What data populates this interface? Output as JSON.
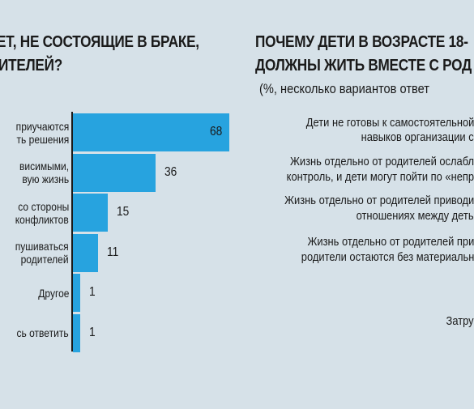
{
  "left_panel": {
    "title_lines": [
      "ЕТ, НЕ СОСТОЯЩИЕ В БРАКЕ,",
      "ИТЕЛЕЙ?"
    ]
  },
  "right_panel": {
    "title_lines": [
      "ПОЧЕМУ ДЕТИ В ВОЗРАСТЕ 18-",
      "ДОЛЖНЫ ЖИТЬ ВМЕСТЕ С РОД"
    ],
    "subtitle": "(%, несколько вариантов ответ",
    "reasons": [
      [
        "Дети не готовы к самостоятельной",
        "навыков организации с"
      ],
      [
        "Жизнь отдельно от родителей ослабл",
        "контроль, и дети могут пойти по «непр"
      ],
      [
        "Жизнь отдельно от родителей приводи",
        "отношениях между деть"
      ],
      [
        "Жизнь отдельно от родителей при",
        "родители остаются без материальн"
      ],
      [
        "Затру"
      ]
    ]
  },
  "chart_data": {
    "type": "bar",
    "orientation": "horizontal",
    "categories": [
      [
        "приучаются",
        "ть решения"
      ],
      [
        "висимыми,",
        "вую жизнь"
      ],
      [
        "со стороны",
        "конфликтов"
      ],
      [
        "пушиваться",
        "родителей"
      ],
      [
        "Другое"
      ],
      [
        "сь ответить"
      ]
    ],
    "values": [
      68,
      36,
      15,
      11,
      1,
      1
    ],
    "data_labels": [
      "68",
      "36",
      "15",
      "11",
      "1",
      "1"
    ],
    "xlim": [
      0,
      70
    ],
    "bar_color": "#27a3df",
    "label_inside_color": "#1a1a1a",
    "grid": false
  }
}
